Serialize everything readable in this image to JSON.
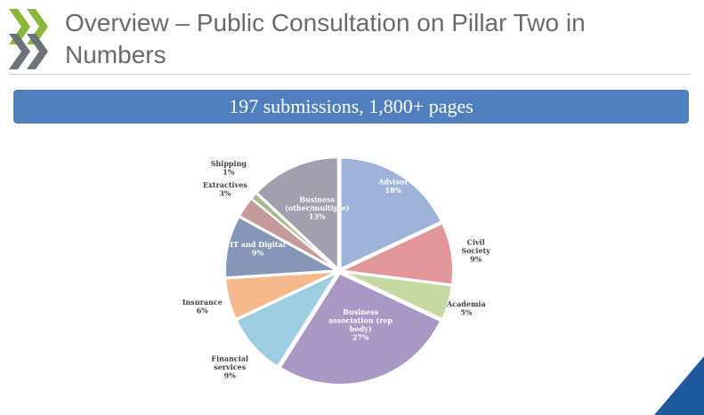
{
  "header": {
    "title": "Overview – Public Consultation on Pillar Two in Numbers"
  },
  "banner": {
    "text": "197 submissions, 1,800+ pages"
  },
  "colors": {
    "logo_green": "#8cb83a",
    "logo_gray": "#6b7379",
    "banner": "#4f7fbf",
    "corner": "#1f5a9e"
  },
  "chart_data": {
    "type": "pie",
    "title": "",
    "start_angle_deg": 0,
    "direction": "clockwise",
    "slices": [
      {
        "label": "Advisor",
        "value": 18,
        "display": "18%",
        "color": "#9fb3da"
      },
      {
        "label": "Civil Society",
        "value": 9,
        "display": "9%",
        "color": "#e2959b"
      },
      {
        "label": "Academia",
        "value": 5,
        "display": "5%",
        "color": "#c6d9a3"
      },
      {
        "label": "Business association (rep body)",
        "value": 27,
        "display": "27%",
        "color": "#a997c4"
      },
      {
        "label": "Financial services",
        "value": 9,
        "display": "9%",
        "color": "#9dcde0"
      },
      {
        "label": "Insurance",
        "value": 6,
        "display": "6%",
        "color": "#f6b98c"
      },
      {
        "label": "IT and Digital",
        "value": 9,
        "display": "9%",
        "color": "#8795b7"
      },
      {
        "label": "Extractives",
        "value": 3,
        "display": "3%",
        "color": "#c49a9c"
      },
      {
        "label": "Shipping",
        "value": 1,
        "display": "1%",
        "color": "#a8bc94"
      },
      {
        "label": "Business (other/multiple)",
        "value": 13,
        "display": "13%",
        "color": "#a2a0af"
      }
    ]
  }
}
